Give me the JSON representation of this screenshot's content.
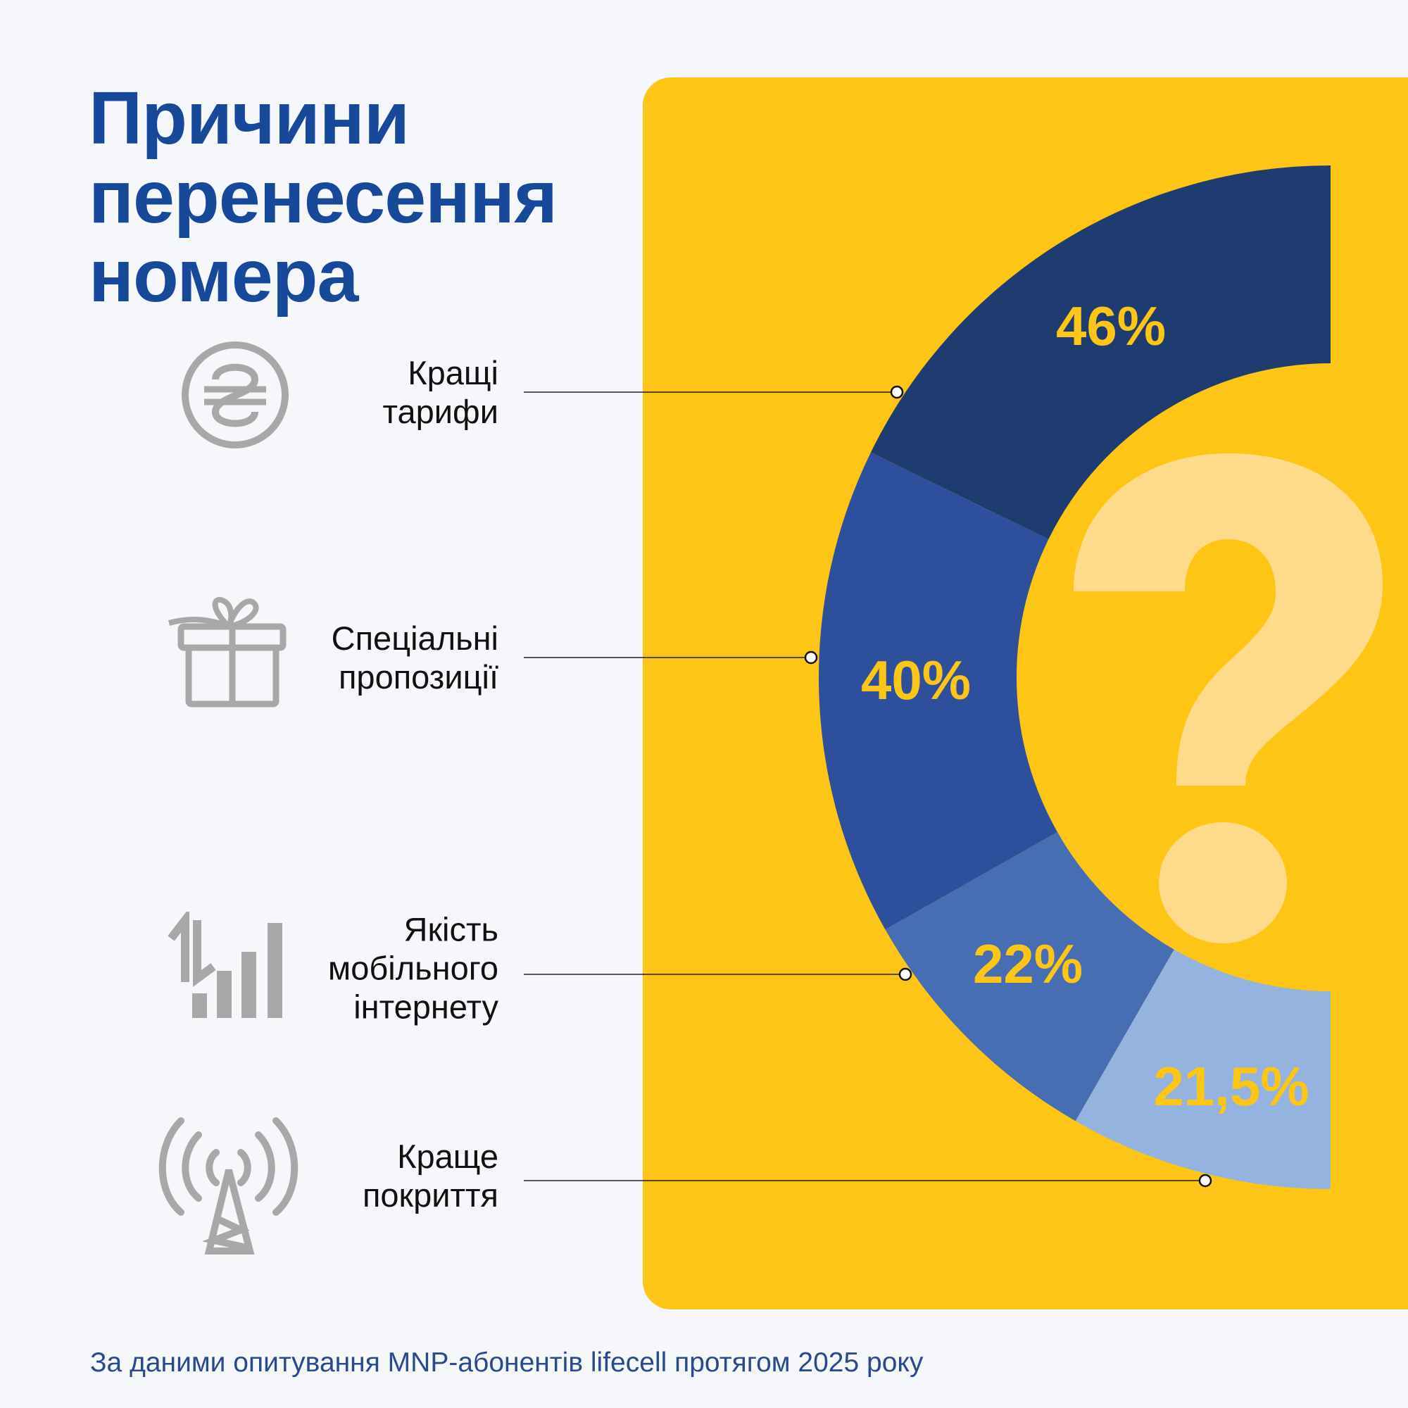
{
  "title": {
    "lines": [
      "Причини",
      "перенесення",
      "номера"
    ]
  },
  "footer": "За даними опитування MNP-абонентів lifecell протягом 2025 року",
  "colors": {
    "title": "#17489a",
    "panel": "#fdc515",
    "value_labels": "#fdc515",
    "question_mark": "#fddb8a",
    "icons": "#a8a8a8"
  },
  "chart_data": {
    "type": "pie",
    "variant": "half-donut",
    "categories": [
      "Кращі тарифи",
      "Спеціальні пропозиції",
      "Якість мобільного інтернету",
      "Краще покриття"
    ],
    "values": [
      46,
      40,
      22,
      21.5
    ],
    "value_labels": [
      "46%",
      "40%",
      "22%",
      "21,5%"
    ],
    "colors": [
      "#1e3c70",
      "#2e509c",
      "#476db3",
      "#94b3df"
    ],
    "icons": [
      "hryvnia-icon",
      "gift-icon",
      "signal-icon",
      "antenna-tower-icon"
    ]
  },
  "labels": [
    {
      "lines": [
        "Кращі",
        "тарифи"
      ]
    },
    {
      "lines": [
        "Спеціальні",
        "пропозиції"
      ]
    },
    {
      "lines": [
        "Якість",
        "мобільного",
        "інтернету"
      ]
    },
    {
      "lines": [
        "Краще",
        "покриття"
      ]
    }
  ]
}
